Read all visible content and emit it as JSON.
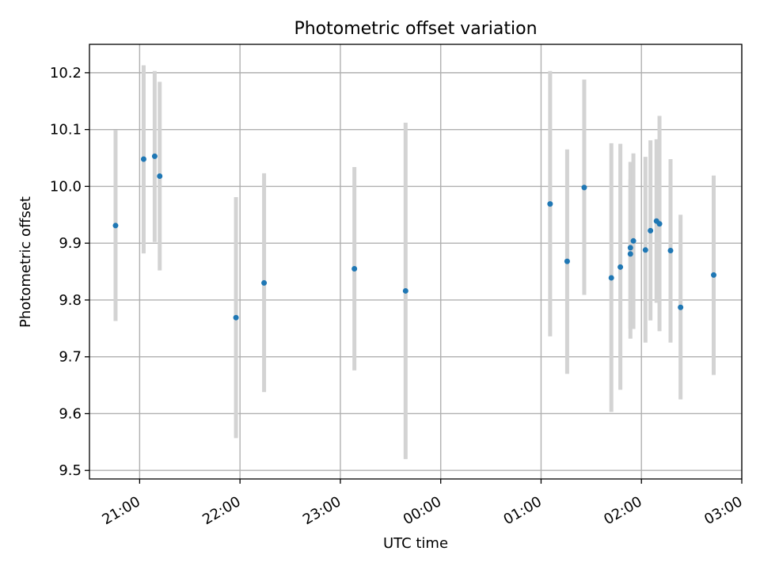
{
  "chart_data": {
    "type": "scatter",
    "title": "Photometric offset variation",
    "xlabel": "UTC time",
    "ylabel": "Photometric offset",
    "x_unit": "hours (UTC, continuing past midnight as 24+)",
    "xlim": [
      20.5,
      27.0
    ],
    "ylim": [
      9.485,
      10.25
    ],
    "grid": true,
    "x_ticks": [
      {
        "value": 21,
        "label": "21:00"
      },
      {
        "value": 22,
        "label": "22:00"
      },
      {
        "value": 23,
        "label": "23:00"
      },
      {
        "value": 24,
        "label": "00:00"
      },
      {
        "value": 25,
        "label": "01:00"
      },
      {
        "value": 26,
        "label": "02:00"
      },
      {
        "value": 27,
        "label": "03:00"
      }
    ],
    "y_ticks": [
      {
        "value": 9.5,
        "label": "9.5"
      },
      {
        "value": 9.6,
        "label": "9.6"
      },
      {
        "value": 9.7,
        "label": "9.7"
      },
      {
        "value": 9.8,
        "label": "9.8"
      },
      {
        "value": 9.9,
        "label": "9.9"
      },
      {
        "value": 10.0,
        "label": "10.0"
      },
      {
        "value": 10.1,
        "label": "10.1"
      },
      {
        "value": 10.2,
        "label": "10.2"
      }
    ],
    "marker_color": "#1f77b4",
    "errorbar_color": "#d3d3d3",
    "points": [
      {
        "x": 20.76,
        "y": 9.931,
        "ylow": 9.763,
        "yhigh": 10.099
      },
      {
        "x": 21.04,
        "y": 10.048,
        "ylow": 9.882,
        "yhigh": 10.213
      },
      {
        "x": 21.15,
        "y": 10.053,
        "ylow": 9.902,
        "yhigh": 10.203
      },
      {
        "x": 21.2,
        "y": 10.018,
        "ylow": 9.852,
        "yhigh": 10.184
      },
      {
        "x": 21.96,
        "y": 9.769,
        "ylow": 9.557,
        "yhigh": 9.981
      },
      {
        "x": 22.24,
        "y": 9.83,
        "ylow": 9.638,
        "yhigh": 10.023
      },
      {
        "x": 23.14,
        "y": 9.855,
        "ylow": 9.676,
        "yhigh": 10.034
      },
      {
        "x": 23.65,
        "y": 9.816,
        "ylow": 9.52,
        "yhigh": 10.112
      },
      {
        "x": 25.09,
        "y": 9.969,
        "ylow": 9.736,
        "yhigh": 10.203
      },
      {
        "x": 25.26,
        "y": 9.868,
        "ylow": 9.67,
        "yhigh": 10.065
      },
      {
        "x": 25.43,
        "y": 9.998,
        "ylow": 9.809,
        "yhigh": 10.188
      },
      {
        "x": 25.7,
        "y": 9.839,
        "ylow": 9.603,
        "yhigh": 10.076
      },
      {
        "x": 25.79,
        "y": 9.858,
        "ylow": 9.642,
        "yhigh": 10.075
      },
      {
        "x": 25.89,
        "y": 9.892,
        "ylow": 9.732,
        "yhigh": 10.043
      },
      {
        "x": 25.89,
        "y": 9.881,
        "ylow": 9.75,
        "yhigh": 10.012
      },
      {
        "x": 25.92,
        "y": 9.904,
        "ylow": 9.749,
        "yhigh": 10.058
      },
      {
        "x": 26.04,
        "y": 9.888,
        "ylow": 9.725,
        "yhigh": 10.052
      },
      {
        "x": 26.09,
        "y": 9.922,
        "ylow": 9.764,
        "yhigh": 10.081
      },
      {
        "x": 26.15,
        "y": 9.939,
        "ylow": 9.795,
        "yhigh": 10.083
      },
      {
        "x": 26.18,
        "y": 9.934,
        "ylow": 9.745,
        "yhigh": 10.124
      },
      {
        "x": 26.29,
        "y": 9.887,
        "ylow": 9.725,
        "yhigh": 10.048
      },
      {
        "x": 26.39,
        "y": 9.787,
        "ylow": 9.625,
        "yhigh": 9.95
      },
      {
        "x": 26.72,
        "y": 9.844,
        "ylow": 9.668,
        "yhigh": 10.019
      }
    ]
  }
}
